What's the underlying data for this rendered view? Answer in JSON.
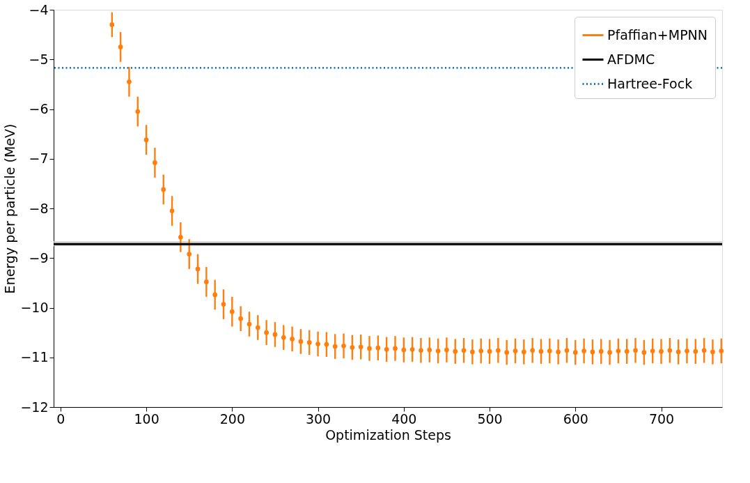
{
  "chart_data": {
    "type": "scatter",
    "xlabel": "Optimization Steps",
    "ylabel": "Energy per particle (MeV)",
    "xlim": [
      -8,
      771
    ],
    "xticks": [
      0,
      100,
      200,
      300,
      400,
      500,
      600,
      700
    ],
    "ylim": [
      -12,
      -4
    ],
    "yticks": [
      -12,
      -11,
      -10,
      -9,
      -8,
      -7,
      -6,
      -5,
      -4
    ],
    "grid": false,
    "legend": "top right",
    "marker": "circle",
    "series": [
      {
        "name": "Pfaffian+MPNN",
        "color": "#ff7f0e",
        "x": [
          60,
          70,
          80,
          90,
          100,
          110,
          120,
          130,
          140,
          150,
          160,
          170,
          180,
          190,
          200,
          210,
          220,
          230,
          240,
          250,
          260,
          270,
          280,
          290,
          300,
          310,
          320,
          330,
          340,
          350,
          360,
          370,
          380,
          390,
          400,
          410,
          420,
          430,
          440,
          450,
          460,
          470,
          480,
          490,
          500,
          510,
          520,
          530,
          540,
          550,
          560,
          570,
          580,
          590,
          600,
          610,
          620,
          630,
          640,
          650,
          660,
          670,
          680,
          690,
          700,
          710,
          720,
          730,
          740,
          750,
          760,
          770
        ],
        "values": [
          -4.3,
          -4.75,
          -5.45,
          -6.05,
          -6.62,
          -7.08,
          -7.62,
          -8.05,
          -8.58,
          -8.92,
          -9.22,
          -9.48,
          -9.74,
          -9.93,
          -10.08,
          -10.22,
          -10.33,
          -10.4,
          -10.5,
          -10.54,
          -10.6,
          -10.63,
          -10.68,
          -10.7,
          -10.73,
          -10.74,
          -10.78,
          -10.77,
          -10.8,
          -10.79,
          -10.82,
          -10.81,
          -10.84,
          -10.82,
          -10.85,
          -10.84,
          -10.86,
          -10.85,
          -10.87,
          -10.85,
          -10.88,
          -10.86,
          -10.89,
          -10.87,
          -10.88,
          -10.86,
          -10.9,
          -10.87,
          -10.89,
          -10.86,
          -10.88,
          -10.87,
          -10.89,
          -10.86,
          -10.9,
          -10.87,
          -10.89,
          -10.88,
          -10.9,
          -10.87,
          -10.88,
          -10.86,
          -10.9,
          -10.87,
          -10.88,
          -10.86,
          -10.89,
          -10.87,
          -10.88,
          -10.86,
          -10.89,
          -10.87
        ],
        "errors": [
          0.25,
          0.3,
          0.3,
          0.3,
          0.3,
          0.3,
          0.3,
          0.3,
          0.3,
          0.3,
          0.3,
          0.3,
          0.3,
          0.3,
          0.3,
          0.25,
          0.25,
          0.25,
          0.25,
          0.25,
          0.25,
          0.25,
          0.25,
          0.25,
          0.25,
          0.25,
          0.25,
          0.25,
          0.25,
          0.25,
          0.25,
          0.25,
          0.25,
          0.25,
          0.25,
          0.25,
          0.25,
          0.25,
          0.25,
          0.25,
          0.25,
          0.25,
          0.25,
          0.25,
          0.25,
          0.25,
          0.25,
          0.25,
          0.25,
          0.25,
          0.25,
          0.25,
          0.25,
          0.25,
          0.25,
          0.25,
          0.25,
          0.25,
          0.25,
          0.25,
          0.25,
          0.25,
          0.25,
          0.25,
          0.25,
          0.25,
          0.25,
          0.25,
          0.25,
          0.25,
          0.25,
          0.25
        ]
      }
    ],
    "ref_lines": [
      {
        "axis": "y",
        "value": -8.72,
        "label": "AFDMC",
        "color": "#000000",
        "line_style": "solid"
      },
      {
        "axis": "y",
        "value": -5.17,
        "label": "Hartree-Fock",
        "color": "#1f77b4",
        "line_style": "dotted"
      }
    ],
    "bands": [
      {
        "axis": "y",
        "from": -8.66,
        "to": -8.76,
        "color": "#d0d0d0"
      }
    ]
  }
}
